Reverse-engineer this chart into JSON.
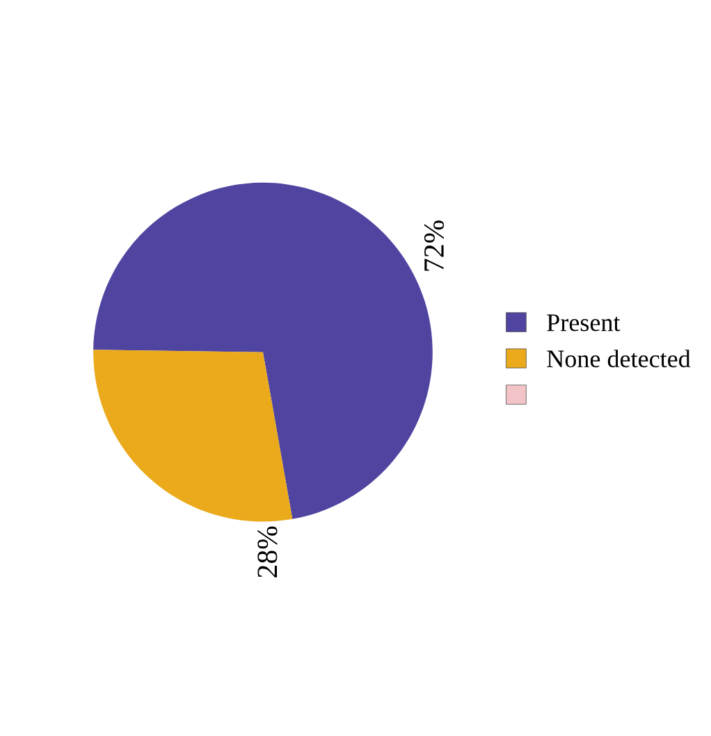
{
  "chart_data": {
    "type": "pie",
    "categories": [
      "Present",
      "None detected",
      null
    ],
    "values": [
      72,
      28,
      0
    ],
    "colors": [
      "#4f45a0",
      "#eaaa1c",
      "#f2c4c8"
    ],
    "value_labels": [
      "72%",
      "28%",
      null
    ],
    "legend": "right"
  }
}
